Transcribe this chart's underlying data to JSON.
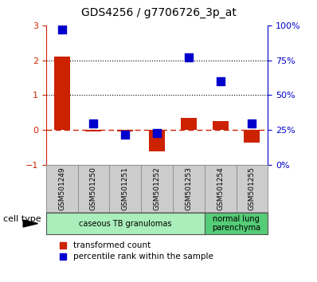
{
  "title": "GDS4256 / g7706726_3p_at",
  "samples": [
    "GSM501249",
    "GSM501250",
    "GSM501251",
    "GSM501252",
    "GSM501253",
    "GSM501254",
    "GSM501255"
  ],
  "transformed_count": [
    2.1,
    -0.05,
    -0.03,
    -0.6,
    0.35,
    0.25,
    -0.35
  ],
  "percentile_rank": [
    97,
    30,
    22,
    23,
    77,
    60,
    30
  ],
  "ylim_left": [
    -1,
    3
  ],
  "ylim_right": [
    0,
    100
  ],
  "yticks_left": [
    -1,
    0,
    1,
    2,
    3
  ],
  "yticks_right": [
    0,
    25,
    50,
    75,
    100
  ],
  "yticklabels_right": [
    "0%",
    "25%",
    "50%",
    "75%",
    "100%"
  ],
  "bar_color": "#cc2200",
  "dot_color": "#0000cc",
  "bar_width": 0.5,
  "dot_size": 45,
  "cell_type_groups": [
    {
      "label": "caseous TB granulomas",
      "indices": [
        0,
        1,
        2,
        3,
        4
      ],
      "color": "#aaeebb"
    },
    {
      "label": "normal lung\nparenchyma",
      "indices": [
        5,
        6
      ],
      "color": "#55cc77"
    }
  ],
  "cell_type_label": "cell type",
  "legend_red": "transformed count",
  "legend_blue": "percentile rank within the sample",
  "tick_label_box_color": "#cccccc",
  "background_color": "#ffffff"
}
